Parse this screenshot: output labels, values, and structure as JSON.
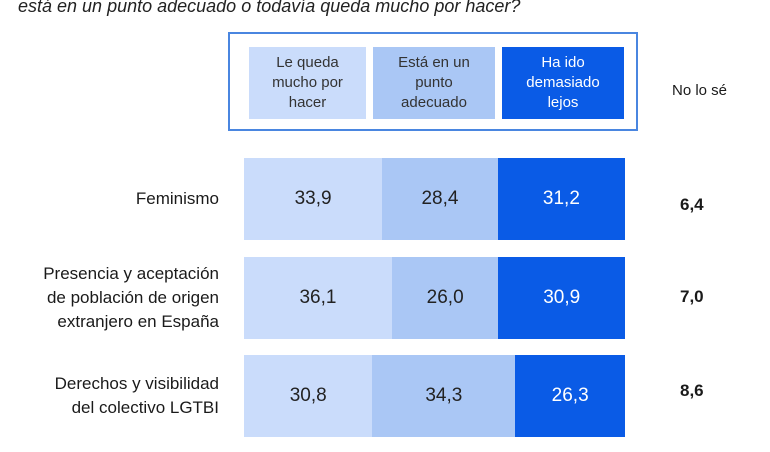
{
  "question": "está en un punto adecuado o todavía queda mucho por hacer?",
  "colors": {
    "light": "#cadcfb",
    "mid": "#aac7f5",
    "dark": "#0a5be6",
    "border": "#4a86e0"
  },
  "chart_data": {
    "type": "bar",
    "stacked": true,
    "orientation": "horizontal",
    "categories": [
      "Feminismo",
      "Presencia y aceptación de población de origen extranjero en España",
      "Derechos y visibilidad del colectivo LGTBI"
    ],
    "series": [
      {
        "name": "Le queda mucho por hacer",
        "values": [
          33.9,
          36.1,
          30.8
        ]
      },
      {
        "name": "Está en un punto adecuado",
        "values": [
          28.4,
          26.0,
          34.3
        ]
      },
      {
        "name": "Ha ido demasiado lejos",
        "values": [
          31.2,
          30.9,
          26.3
        ]
      }
    ],
    "extra_column": {
      "name": "No lo sé",
      "values": [
        "6,4",
        "7,0",
        "8,6"
      ]
    },
    "value_labels": [
      [
        "33,9",
        "28,4",
        "31,2"
      ],
      [
        "36,1",
        "26,0",
        "30,9"
      ],
      [
        "30,8",
        "34,3",
        "26,3"
      ]
    ],
    "category_labels": [
      [
        "Feminismo"
      ],
      [
        "Presencia y aceptación",
        "de población de origen",
        "extranjero en España"
      ],
      [
        "Derechos y visibilidad",
        "del colectivo LGTBI"
      ]
    ]
  }
}
